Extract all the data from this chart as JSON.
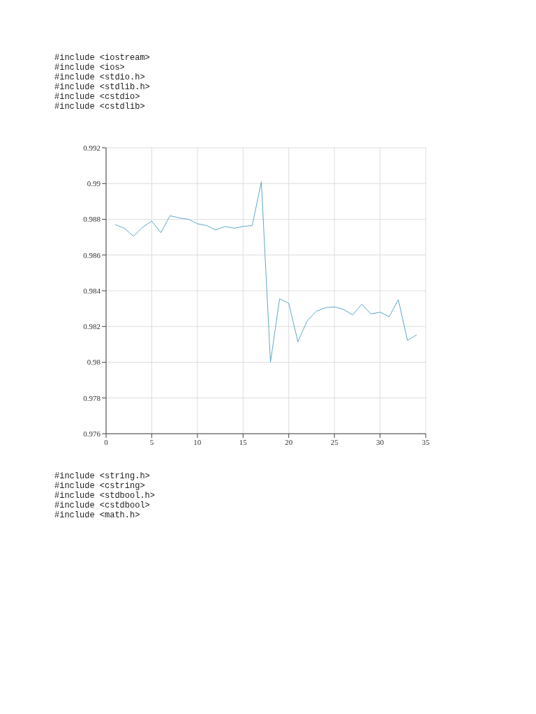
{
  "chart_data": {
    "type": "line",
    "x": [
      1,
      2,
      3,
      4,
      5,
      6,
      7,
      8,
      9,
      10,
      11,
      12,
      13,
      14,
      15,
      16,
      17,
      18,
      19,
      20,
      21,
      22,
      23,
      24,
      25,
      26,
      27,
      28,
      29,
      30,
      31,
      32,
      33,
      34
    ],
    "series": [
      {
        "color": "#5fa8c8",
        "values": [
          0.9877,
          0.9875,
          0.98705,
          0.98755,
          0.9879,
          0.98725,
          0.9882,
          0.98808,
          0.988,
          0.98775,
          0.98765,
          0.9874,
          0.9876,
          0.9875,
          0.9876,
          0.98765,
          0.9901,
          0.98,
          0.98355,
          0.9833,
          0.98115,
          0.9823,
          0.98285,
          0.98305,
          0.9831,
          0.98295,
          0.98265,
          0.98325,
          0.9827,
          0.9828,
          0.98255,
          0.9835,
          0.98122,
          0.98153
        ]
      }
    ],
    "xlim": [
      0,
      35
    ],
    "xticks": [
      0,
      5,
      10,
      15,
      20,
      25,
      30,
      35
    ],
    "ylim": [
      0.976,
      0.992
    ],
    "yticks": [
      0.976,
      0.978,
      0.98,
      0.982,
      0.984,
      0.986,
      0.988,
      0.99,
      0.992
    ],
    "grid": true,
    "marker": "none",
    "line_style": "solid",
    "legend": false,
    "annotations": [
      "#include <iostream>",
      "#include <ios>",
      "#include <stdio.h>",
      "#include <stdlib.h>",
      "#include <cstdio>",
      "#include <cstdlib>",
      "#include <string.h>",
      "#include <cstring>",
      "#include <stdbool.h>",
      "#include <cstdbool>",
      "#include <math.h>"
    ]
  }
}
